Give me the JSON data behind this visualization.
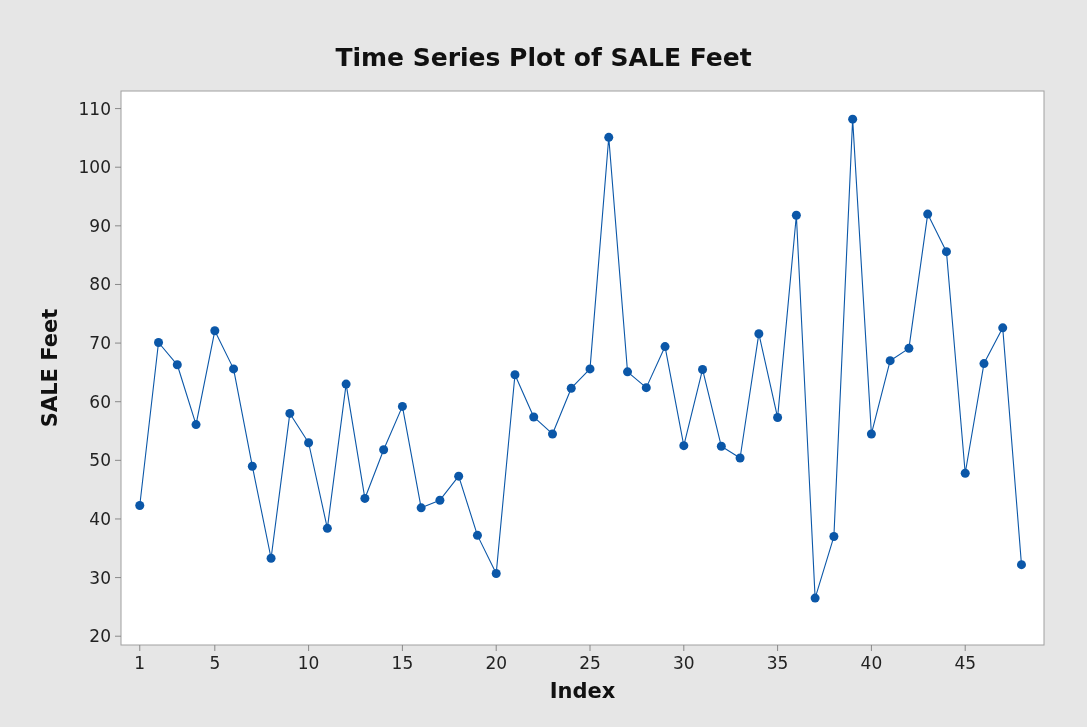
{
  "chart_data": {
    "type": "line",
    "title": "Time Series Plot of SALE Feet",
    "xlabel": "Index",
    "ylabel": "SALE Feet",
    "x": [
      1,
      2,
      3,
      4,
      5,
      6,
      7,
      8,
      9,
      10,
      11,
      12,
      13,
      14,
      15,
      16,
      17,
      18,
      19,
      20,
      21,
      22,
      23,
      24,
      25,
      26,
      27,
      28,
      29,
      30,
      31,
      32,
      33,
      34,
      35,
      36,
      37,
      38,
      39,
      40,
      41,
      42,
      43,
      44,
      45,
      46,
      47,
      48
    ],
    "series": [
      {
        "color": "#0b57a8",
        "values": [
          42.3,
          70.1,
          66.3,
          56.1,
          72.1,
          65.6,
          49.0,
          33.3,
          58.0,
          53.0,
          38.4,
          63.0,
          43.5,
          51.8,
          59.2,
          41.9,
          43.2,
          47.3,
          37.2,
          30.7,
          64.6,
          57.4,
          54.5,
          62.3,
          65.6,
          105.1,
          65.1,
          62.4,
          69.4,
          52.5,
          65.5,
          52.4,
          50.4,
          71.6,
          57.3,
          91.8,
          26.5,
          37.0,
          108.2,
          54.5,
          67.0,
          69.1,
          92.0,
          85.6,
          47.8,
          66.5,
          72.6,
          32.2
        ]
      }
    ],
    "xlim": [
      0,
      49.2
    ],
    "xticks": [
      1,
      5,
      10,
      15,
      20,
      25,
      30,
      35,
      40,
      45
    ],
    "ylim": [
      18.5,
      113
    ],
    "yticks": [
      20,
      30,
      40,
      50,
      60,
      70,
      80,
      90,
      100,
      110
    ],
    "marker": "circle",
    "line_style": "solid"
  }
}
